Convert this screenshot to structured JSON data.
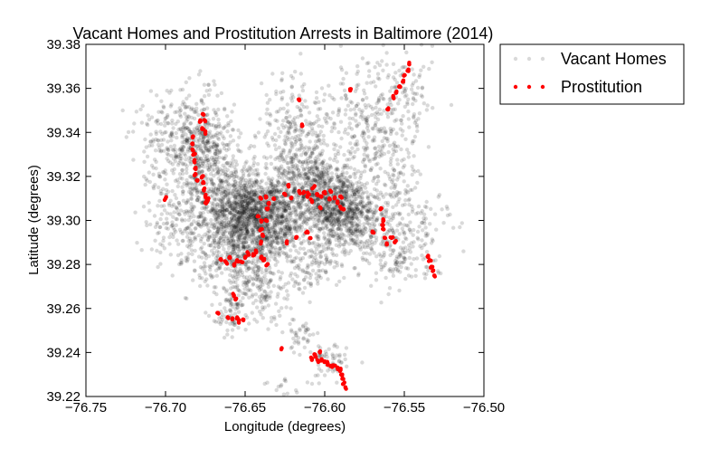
{
  "chart_data": {
    "type": "scatter",
    "title": "Vacant Homes and Prostitution Arrests in Baltimore (2014)",
    "xlabel": "Longitude (degrees)",
    "ylabel": "Latitude (degrees)",
    "xlim": [
      -76.75,
      -76.5
    ],
    "ylim": [
      39.22,
      39.38
    ],
    "xticks": [
      -76.75,
      -76.7,
      -76.65,
      -76.6,
      -76.55,
      -76.5
    ],
    "xtick_labels": [
      "−76.75",
      "−76.70",
      "−76.65",
      "−76.60",
      "−76.55",
      "−76.50"
    ],
    "yticks": [
      39.22,
      39.24,
      39.26,
      39.28,
      39.3,
      39.32,
      39.34,
      39.36,
      39.38
    ],
    "ytick_labels": [
      "39.22",
      "39.24",
      "39.26",
      "39.28",
      "39.30",
      "39.32",
      "39.34",
      "39.36",
      "39.38"
    ],
    "grid": false,
    "legend": {
      "placement": "outside-top-right"
    },
    "series": [
      {
        "name": "Vacant Homes",
        "color": "#000000",
        "alpha": 0.15,
        "clusters": [
          {
            "center": [
              -76.655,
              39.295
            ],
            "spread": [
              0.014,
              0.012
            ],
            "count": 900
          },
          {
            "center": [
              -76.645,
              39.305
            ],
            "spread": [
              0.01,
              0.008
            ],
            "count": 500
          },
          {
            "center": [
              -76.63,
              39.3
            ],
            "spread": [
              0.008,
              0.01
            ],
            "count": 350
          },
          {
            "center": [
              -76.6,
              39.31
            ],
            "spread": [
              0.013,
              0.009
            ],
            "count": 700
          },
          {
            "center": [
              -76.585,
              39.3
            ],
            "spread": [
              0.01,
              0.008
            ],
            "count": 400
          },
          {
            "center": [
              -76.615,
              39.325
            ],
            "spread": [
              0.012,
              0.012
            ],
            "count": 350
          },
          {
            "center": [
              -76.68,
              39.335
            ],
            "spread": [
              0.01,
              0.012
            ],
            "count": 400
          },
          {
            "center": [
              -76.665,
              39.32
            ],
            "spread": [
              0.012,
              0.01
            ],
            "count": 250
          },
          {
            "center": [
              -76.69,
              39.3
            ],
            "spread": [
              0.012,
              0.012
            ],
            "count": 200
          },
          {
            "center": [
              -76.575,
              39.34
            ],
            "spread": [
              0.015,
              0.015
            ],
            "count": 250
          },
          {
            "center": [
              -76.56,
              39.32
            ],
            "spread": [
              0.012,
              0.015
            ],
            "count": 150
          },
          {
            "center": [
              -76.555,
              39.285
            ],
            "spread": [
              0.012,
              0.008
            ],
            "count": 150
          },
          {
            "center": [
              -76.65,
              39.27
            ],
            "spread": [
              0.008,
              0.008
            ],
            "count": 120
          },
          {
            "center": [
              -76.635,
              39.265
            ],
            "spread": [
              0.006,
              0.006
            ],
            "count": 60
          },
          {
            "center": [
              -76.66,
              39.255
            ],
            "spread": [
              0.005,
              0.004
            ],
            "count": 50
          },
          {
            "center": [
              -76.615,
              39.248
            ],
            "spread": [
              0.005,
              0.004
            ],
            "count": 40
          },
          {
            "center": [
              -76.598,
              39.235
            ],
            "spread": [
              0.006,
              0.005
            ],
            "count": 60
          },
          {
            "center": [
              -76.7,
              39.335
            ],
            "spread": [
              0.012,
              0.01
            ],
            "count": 120
          },
          {
            "center": [
              -76.62,
              39.35
            ],
            "spread": [
              0.012,
              0.01
            ],
            "count": 100
          },
          {
            "center": [
              -76.55,
              39.355
            ],
            "spread": [
              0.012,
              0.01
            ],
            "count": 100
          },
          {
            "center": [
              -76.61,
              39.28
            ],
            "spread": [
              0.01,
              0.006
            ],
            "count": 120
          },
          {
            "center": [
              -76.54,
              39.3
            ],
            "spread": [
              0.01,
              0.012
            ],
            "count": 80
          },
          {
            "center": [
              -76.63,
              39.22
            ],
            "spread": [
              0.008,
              0.005
            ],
            "count": 40
          }
        ]
      },
      {
        "name": "Prostitution",
        "color": "#ff0000",
        "alpha": 1.0,
        "points": [
          [
            -76.683,
            39.338
          ],
          [
            -76.683,
            39.335
          ],
          [
            -76.683,
            39.332
          ],
          [
            -76.682,
            39.33
          ],
          [
            -76.682,
            39.327
          ],
          [
            -76.681,
            39.324
          ],
          [
            -76.681,
            39.321
          ],
          [
            -76.68,
            39.318
          ],
          [
            -76.678,
            39.345
          ],
          [
            -76.677,
            39.342
          ],
          [
            -76.676,
            39.348
          ],
          [
            -76.675,
            39.345
          ],
          [
            -76.675,
            39.34
          ],
          [
            -76.677,
            39.32
          ],
          [
            -76.676,
            39.317
          ],
          [
            -76.676,
            39.314
          ],
          [
            -76.675,
            39.311
          ],
          [
            -76.675,
            39.308
          ],
          [
            -76.674,
            39.309
          ],
          [
            -76.673,
            39.31
          ],
          [
            -76.7,
            39.31
          ],
          [
            -76.665,
            39.282
          ],
          [
            -76.66,
            39.283
          ],
          [
            -76.655,
            39.282
          ],
          [
            -76.65,
            39.283
          ],
          [
            -76.645,
            39.284
          ],
          [
            -76.64,
            39.283
          ],
          [
            -76.638,
            39.282
          ],
          [
            -76.636,
            39.28
          ],
          [
            -76.662,
            39.281
          ],
          [
            -76.657,
            39.28
          ],
          [
            -76.652,
            39.281
          ],
          [
            -76.648,
            39.285
          ],
          [
            -76.643,
            39.286
          ],
          [
            -76.64,
            39.29
          ],
          [
            -76.639,
            39.293
          ],
          [
            -76.64,
            39.296
          ],
          [
            -76.637,
            39.3
          ],
          [
            -76.636,
            39.305
          ],
          [
            -76.635,
            39.308
          ],
          [
            -76.637,
            39.311
          ],
          [
            -76.64,
            39.31
          ],
          [
            -76.632,
            39.31
          ],
          [
            -76.625,
            39.312
          ],
          [
            -76.623,
            39.316
          ],
          [
            -76.621,
            39.31
          ],
          [
            -76.616,
            39.313
          ],
          [
            -76.613,
            39.313
          ],
          [
            -76.61,
            39.312
          ],
          [
            -76.607,
            39.315
          ],
          [
            -76.605,
            39.312
          ],
          [
            -76.6,
            39.313
          ],
          [
            -76.597,
            39.31
          ],
          [
            -76.594,
            39.31
          ],
          [
            -76.592,
            39.308
          ],
          [
            -76.59,
            39.306
          ],
          [
            -76.588,
            39.305
          ],
          [
            -76.603,
            39.306
          ],
          [
            -76.611,
            39.295
          ],
          [
            -76.609,
            39.292
          ],
          [
            -76.618,
            39.292
          ],
          [
            -76.624,
            39.29
          ],
          [
            -76.616,
            39.355
          ],
          [
            -76.614,
            39.343
          ],
          [
            -76.584,
            39.359
          ],
          [
            -76.565,
            39.305
          ],
          [
            -76.563,
            39.3
          ],
          [
            -76.563,
            39.296
          ],
          [
            -76.562,
            39.292
          ],
          [
            -76.561,
            39.289
          ],
          [
            -76.558,
            39.292
          ],
          [
            -76.556,
            39.29
          ],
          [
            -76.535,
            39.284
          ],
          [
            -76.534,
            39.282
          ],
          [
            -76.533,
            39.279
          ],
          [
            -76.532,
            39.277
          ],
          [
            -76.531,
            39.275
          ],
          [
            -76.547,
            39.371
          ],
          [
            -76.548,
            39.368
          ],
          [
            -76.55,
            39.366
          ],
          [
            -76.551,
            39.363
          ],
          [
            -76.553,
            39.361
          ],
          [
            -76.555,
            39.358
          ],
          [
            -76.557,
            39.356
          ],
          [
            -76.56,
            39.351
          ],
          [
            -76.657,
            39.266
          ],
          [
            -76.656,
            39.264
          ],
          [
            -76.661,
            39.256
          ],
          [
            -76.658,
            39.255
          ],
          [
            -76.655,
            39.256
          ],
          [
            -76.654,
            39.254
          ],
          [
            -76.651,
            39.255
          ],
          [
            -76.667,
            39.258
          ],
          [
            -76.627,
            39.242
          ],
          [
            -76.608,
            39.237
          ],
          [
            -76.606,
            39.238
          ],
          [
            -76.604,
            39.236
          ],
          [
            -76.602,
            39.237
          ],
          [
            -76.6,
            39.236
          ],
          [
            -76.598,
            39.235
          ],
          [
            -76.596,
            39.234
          ],
          [
            -76.594,
            39.234
          ],
          [
            -76.592,
            39.233
          ],
          [
            -76.59,
            39.232
          ],
          [
            -76.589,
            39.23
          ],
          [
            -76.589,
            39.228
          ],
          [
            -76.588,
            39.226
          ],
          [
            -76.587,
            39.224
          ],
          [
            -76.603,
            39.24
          ],
          [
            -76.606,
            39.239
          ],
          [
            -76.64,
            39.3
          ],
          [
            -76.642,
            39.302
          ],
          [
            -76.611,
            39.311
          ],
          [
            -76.608,
            39.309
          ],
          [
            -76.602,
            39.311
          ],
          [
            -76.596,
            39.313
          ],
          [
            -76.59,
            39.311
          ],
          [
            -76.57,
            39.295
          ],
          [
            -76.564,
            39.298
          ]
        ]
      }
    ]
  }
}
